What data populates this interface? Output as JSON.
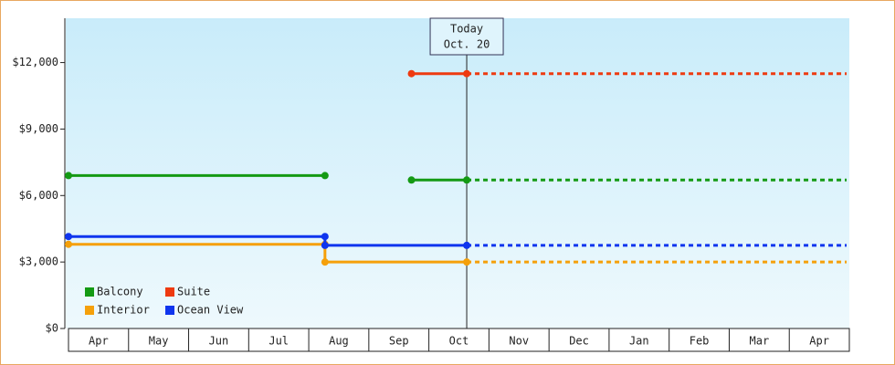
{
  "chart_data": {
    "type": "line",
    "annotation": {
      "lines": [
        "Today",
        "Oct. 20"
      ],
      "x": 6.63
    },
    "xlim": [
      0,
      13
    ],
    "xticks": [
      {
        "value": 0,
        "label": "Apr"
      },
      {
        "value": 1,
        "label": "May"
      },
      {
        "value": 2,
        "label": "Jun"
      },
      {
        "value": 3,
        "label": "Jul"
      },
      {
        "value": 4,
        "label": "Aug"
      },
      {
        "value": 5,
        "label": "Sep"
      },
      {
        "value": 6,
        "label": "Oct"
      },
      {
        "value": 7,
        "label": "Nov"
      },
      {
        "value": 8,
        "label": "Dec"
      },
      {
        "value": 9,
        "label": "Jan"
      },
      {
        "value": 10,
        "label": "Feb"
      },
      {
        "value": 11,
        "label": "Mar"
      },
      {
        "value": 12,
        "label": "Apr"
      }
    ],
    "ylim": [
      0,
      14000
    ],
    "yticks": [
      {
        "value": 0,
        "label": "$0"
      },
      {
        "value": 3000,
        "label": "$3,000"
      },
      {
        "value": 6000,
        "label": "$6,000"
      },
      {
        "value": 9000,
        "label": "$9,000"
      },
      {
        "value": 12000,
        "label": "$12,000"
      }
    ],
    "series": [
      {
        "name": "Balcony",
        "color": "#149a14",
        "x": [
          0,
          4.27,
          null,
          5.71,
          6.63
        ],
        "values": [
          6900,
          6900,
          null,
          6700,
          6700
        ]
      },
      {
        "name": "Suite",
        "color": "#ee3a10",
        "x": [
          5.71,
          6.63
        ],
        "values": [
          11500,
          11500
        ]
      },
      {
        "name": "Interior",
        "color": "#f5a00a",
        "x": [
          0,
          4.27,
          4.27,
          6.63
        ],
        "values": [
          3800,
          3800,
          3000,
          3000
        ]
      },
      {
        "name": "Ocean View",
        "color": "#0f35ee",
        "x": [
          0,
          4.27,
          4.27,
          6.63
        ],
        "values": [
          4150,
          4150,
          3750,
          3750
        ]
      }
    ],
    "legend": "bottom-left"
  }
}
